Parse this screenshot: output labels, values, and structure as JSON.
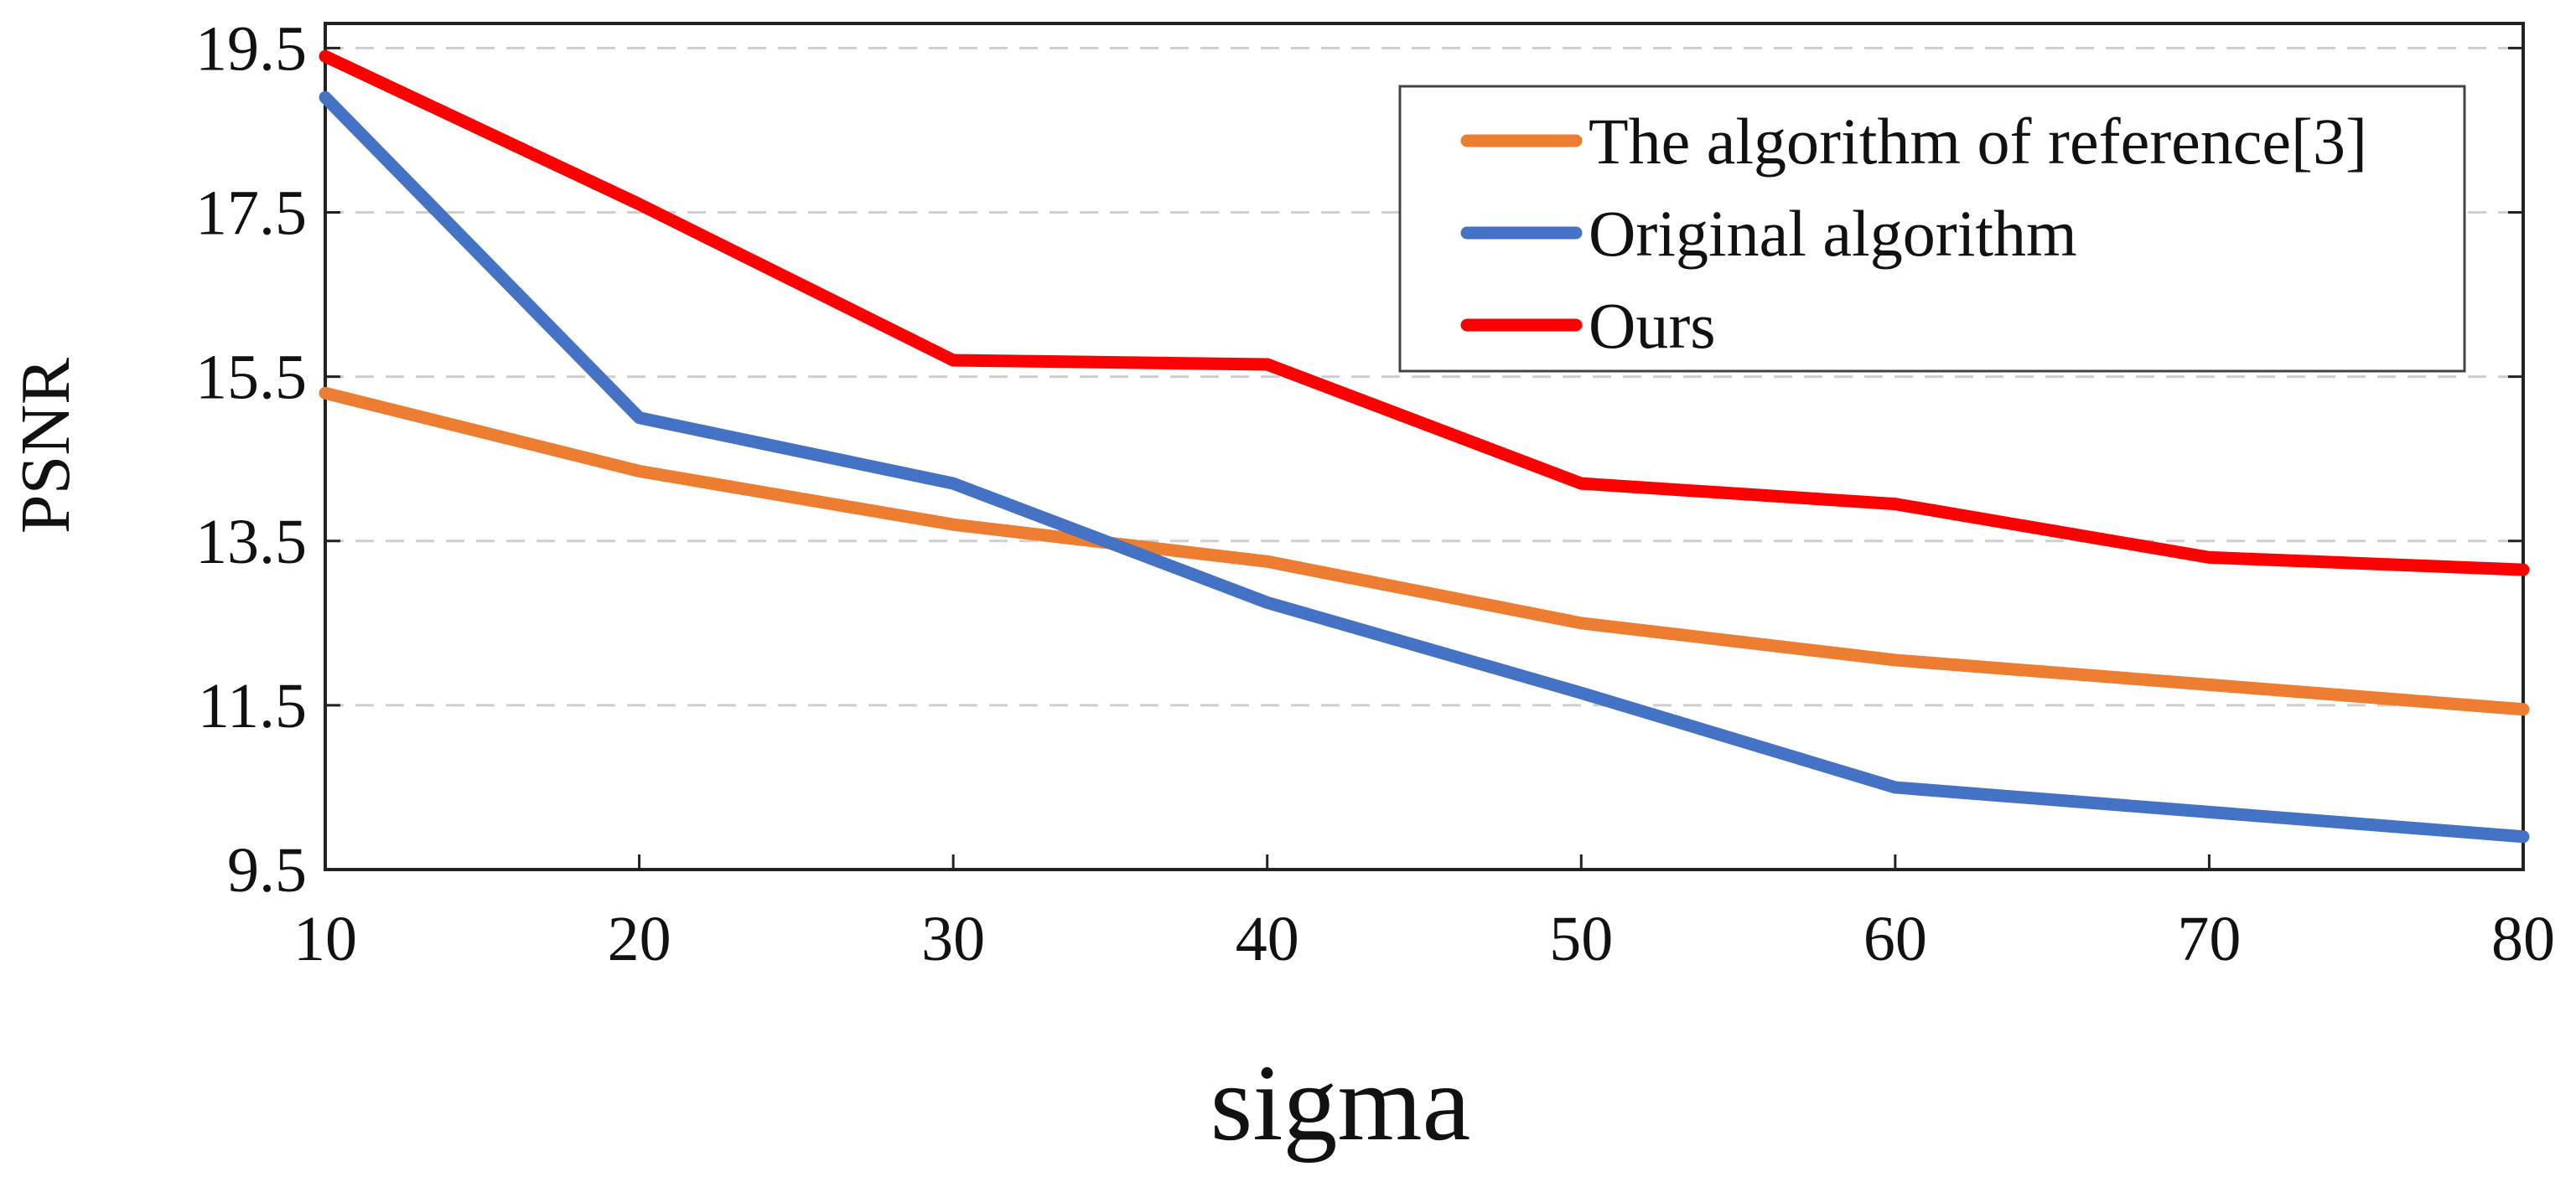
{
  "chart_data": {
    "type": "line",
    "title": "",
    "xlabel": "sigma",
    "ylabel": "PSNR",
    "x": [
      10,
      20,
      30,
      40,
      50,
      60,
      70,
      80
    ],
    "xlim": [
      10,
      80
    ],
    "ylim": [
      9.5,
      19.8
    ],
    "x_ticks": [
      "10",
      "20",
      "30",
      "40",
      "50",
      "60",
      "70",
      "80"
    ],
    "y_ticks": [
      "19.5",
      "17.5",
      "15.5",
      "13.5",
      "11.5",
      "9.5"
    ],
    "y_tick_values": [
      19.5,
      17.5,
      15.5,
      13.5,
      11.5,
      9.5
    ],
    "grid": true,
    "legend_position": "top-right",
    "series": [
      {
        "name": "The algorithm of reference[3]",
        "color": "#ED7D31",
        "values": [
          15.3,
          14.35,
          13.7,
          13.25,
          12.5,
          12.05,
          11.75,
          11.45
        ]
      },
      {
        "name": "Original algorithm",
        "color": "#4472C4",
        "values": [
          18.9,
          15.0,
          14.2,
          12.75,
          11.65,
          10.5,
          10.2,
          9.9
        ]
      },
      {
        "name": "Ours",
        "color": "#FF0000",
        "values": [
          19.4,
          17.6,
          15.7,
          15.65,
          14.2,
          13.95,
          13.3,
          13.15
        ]
      }
    ]
  }
}
